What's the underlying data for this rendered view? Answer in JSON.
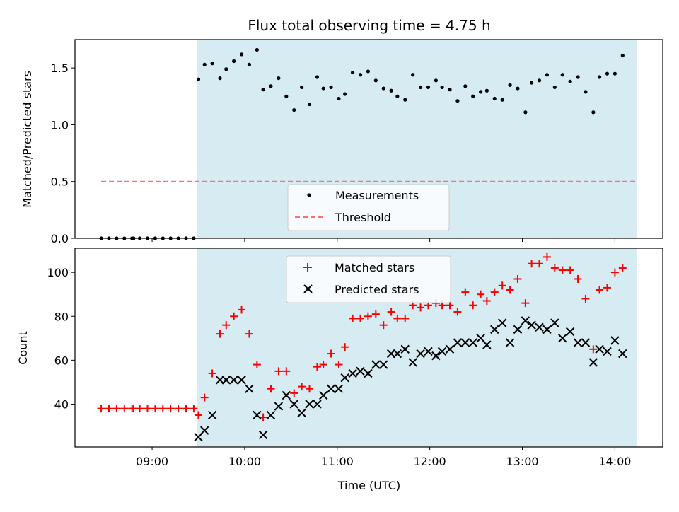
{
  "title": "Flux total observing time = 4.75 h",
  "colors": {
    "shade": "#add8e6",
    "measurement": "#000000",
    "threshold": "#ff6f6f",
    "matched": "#ff0000",
    "predicted": "#000000"
  },
  "chart_data": [
    {
      "type": "scatter",
      "title": "Flux total observing time = 4.75 h",
      "xlabel": "",
      "ylabel": "Matched/Predicted stars",
      "ylim": [
        0,
        1.75
      ],
      "xlim": [
        "08:10",
        "14:31"
      ],
      "y_ticks": [
        "0.0",
        "0.5",
        "1.0",
        "1.5"
      ],
      "shaded_span": [
        "09:29",
        "14:14"
      ],
      "legend_position": "lower center",
      "threshold": {
        "name": "Threshold",
        "value": 0.5,
        "x_range": [
          "08:27",
          "14:14"
        ],
        "style": "dashed"
      },
      "series": [
        {
          "name": "Measurements",
          "marker": "dot",
          "points": [
            [
              "08:27",
              0.0
            ],
            [
              "08:32",
              0.0
            ],
            [
              "08:37",
              0.0
            ],
            [
              "08:42",
              0.0
            ],
            [
              "08:47",
              0.0
            ],
            [
              "08:48",
              0.0
            ],
            [
              "08:52",
              0.0
            ],
            [
              "08:57",
              0.0
            ],
            [
              "09:02",
              0.0
            ],
            [
              "09:07",
              0.0
            ],
            [
              "09:12",
              0.0
            ],
            [
              "09:17",
              0.0
            ],
            [
              "09:22",
              0.0
            ],
            [
              "09:27",
              0.0
            ],
            [
              "09:30",
              1.4
            ],
            [
              "09:34",
              1.53
            ],
            [
              "09:39",
              1.54
            ],
            [
              "09:44",
              1.41
            ],
            [
              "09:48",
              1.49
            ],
            [
              "09:53",
              1.56
            ],
            [
              "09:58",
              1.62
            ],
            [
              "10:03",
              1.53
            ],
            [
              "10:08",
              1.66
            ],
            [
              "10:12",
              1.31
            ],
            [
              "10:17",
              1.34
            ],
            [
              "10:22",
              1.41
            ],
            [
              "10:27",
              1.25
            ],
            [
              "10:32",
              1.13
            ],
            [
              "10:37",
              1.33
            ],
            [
              "10:42",
              1.18
            ],
            [
              "10:47",
              1.42
            ],
            [
              "10:51",
              1.32
            ],
            [
              "10:56",
              1.33
            ],
            [
              "11:01",
              1.23
            ],
            [
              "11:05",
              1.27
            ],
            [
              "11:10",
              1.46
            ],
            [
              "11:15",
              1.44
            ],
            [
              "11:20",
              1.47
            ],
            [
              "11:25",
              1.39
            ],
            [
              "11:30",
              1.32
            ],
            [
              "11:35",
              1.3
            ],
            [
              "11:39",
              1.25
            ],
            [
              "11:44",
              1.22
            ],
            [
              "11:49",
              1.44
            ],
            [
              "11:54",
              1.33
            ],
            [
              "11:59",
              1.33
            ],
            [
              "12:04",
              1.39
            ],
            [
              "12:08",
              1.33
            ],
            [
              "12:13",
              1.31
            ],
            [
              "12:18",
              1.21
            ],
            [
              "12:23",
              1.34
            ],
            [
              "12:28",
              1.25
            ],
            [
              "12:33",
              1.29
            ],
            [
              "12:37",
              1.3
            ],
            [
              "12:42",
              1.23
            ],
            [
              "12:47",
              1.22
            ],
            [
              "12:52",
              1.35
            ],
            [
              "12:57",
              1.32
            ],
            [
              "13:02",
              1.11
            ],
            [
              "13:06",
              1.37
            ],
            [
              "13:11",
              1.39
            ],
            [
              "13:16",
              1.44
            ],
            [
              "13:21",
              1.33
            ],
            [
              "13:26",
              1.44
            ],
            [
              "13:31",
              1.38
            ],
            [
              "13:36",
              1.42
            ],
            [
              "13:41",
              1.29
            ],
            [
              "13:46",
              1.11
            ],
            [
              "13:50",
              1.42
            ],
            [
              "13:55",
              1.45
            ],
            [
              "14:00",
              1.45
            ],
            [
              "14:05",
              1.61
            ]
          ]
        }
      ]
    },
    {
      "type": "scatter",
      "xlabel": "Time (UTC)",
      "ylabel": "Count",
      "ylim": [
        20.5,
        111
      ],
      "xlim": [
        "08:10",
        "14:31"
      ],
      "x_ticks": [
        "09:00",
        "10:00",
        "11:00",
        "12:00",
        "13:00",
        "14:00"
      ],
      "y_ticks": [
        "40",
        "60",
        "80",
        "100"
      ],
      "shaded_span": [
        "09:29",
        "14:14"
      ],
      "legend_position": "upper center",
      "series": [
        {
          "name": "Matched stars",
          "marker": "plus",
          "points": [
            [
              "08:27",
              38
            ],
            [
              "08:32",
              38
            ],
            [
              "08:37",
              38
            ],
            [
              "08:42",
              38
            ],
            [
              "08:47",
              38
            ],
            [
              "08:48",
              38
            ],
            [
              "08:52",
              38
            ],
            [
              "08:57",
              38
            ],
            [
              "09:02",
              38
            ],
            [
              "09:07",
              38
            ],
            [
              "09:12",
              38
            ],
            [
              "09:17",
              38
            ],
            [
              "09:22",
              38
            ],
            [
              "09:27",
              38
            ],
            [
              "09:30",
              35
            ],
            [
              "09:34",
              43
            ],
            [
              "09:39",
              54
            ],
            [
              "09:44",
              72
            ],
            [
              "09:48",
              76
            ],
            [
              "09:53",
              80
            ],
            [
              "09:58",
              83
            ],
            [
              "10:03",
              72
            ],
            [
              "10:08",
              58
            ],
            [
              "10:12",
              34
            ],
            [
              "10:17",
              47
            ],
            [
              "10:22",
              55
            ],
            [
              "10:27",
              55
            ],
            [
              "10:32",
              45
            ],
            [
              "10:37",
              48
            ],
            [
              "10:42",
              47
            ],
            [
              "10:47",
              57
            ],
            [
              "10:51",
              58
            ],
            [
              "10:56",
              63
            ],
            [
              "11:01",
              58
            ],
            [
              "11:05",
              66
            ],
            [
              "11:10",
              79
            ],
            [
              "11:15",
              79
            ],
            [
              "11:20",
              80
            ],
            [
              "11:25",
              81
            ],
            [
              "11:30",
              76
            ],
            [
              "11:35",
              82
            ],
            [
              "11:39",
              79
            ],
            [
              "11:44",
              79
            ],
            [
              "11:49",
              85
            ],
            [
              "11:54",
              84
            ],
            [
              "11:59",
              85
            ],
            [
              "12:04",
              86
            ],
            [
              "12:08",
              85
            ],
            [
              "12:13",
              85
            ],
            [
              "12:18",
              82
            ],
            [
              "12:23",
              91
            ],
            [
              "12:28",
              85
            ],
            [
              "12:33",
              90
            ],
            [
              "12:37",
              87
            ],
            [
              "12:42",
              91
            ],
            [
              "12:47",
              94
            ],
            [
              "12:52",
              92
            ],
            [
              "12:57",
              97
            ],
            [
              "13:02",
              86
            ],
            [
              "13:06",
              104
            ],
            [
              "13:11",
              104
            ],
            [
              "13:16",
              107
            ],
            [
              "13:21",
              102
            ],
            [
              "13:26",
              101
            ],
            [
              "13:31",
              101
            ],
            [
              "13:36",
              97
            ],
            [
              "13:41",
              88
            ],
            [
              "13:46",
              65
            ],
            [
              "13:50",
              92
            ],
            [
              "13:55",
              93
            ],
            [
              "14:00",
              100
            ],
            [
              "14:05",
              102
            ]
          ]
        },
        {
          "name": "Predicted stars",
          "marker": "x",
          "points": [
            [
              "09:30",
              25
            ],
            [
              "09:34",
              28
            ],
            [
              "09:39",
              35
            ],
            [
              "09:44",
              51
            ],
            [
              "09:48",
              51
            ],
            [
              "09:53",
              51
            ],
            [
              "09:58",
              51
            ],
            [
              "10:03",
              47
            ],
            [
              "10:08",
              35
            ],
            [
              "10:12",
              26
            ],
            [
              "10:17",
              35
            ],
            [
              "10:22",
              39
            ],
            [
              "10:27",
              44
            ],
            [
              "10:32",
              40
            ],
            [
              "10:37",
              36
            ],
            [
              "10:42",
              40
            ],
            [
              "10:47",
              40
            ],
            [
              "10:51",
              44
            ],
            [
              "10:56",
              47
            ],
            [
              "11:01",
              47
            ],
            [
              "11:05",
              52
            ],
            [
              "11:10",
              54
            ],
            [
              "11:15",
              55
            ],
            [
              "11:20",
              54
            ],
            [
              "11:25",
              58
            ],
            [
              "11:30",
              58
            ],
            [
              "11:35",
              63
            ],
            [
              "11:39",
              63
            ],
            [
              "11:44",
              65
            ],
            [
              "11:49",
              59
            ],
            [
              "11:54",
              63
            ],
            [
              "11:59",
              64
            ],
            [
              "12:04",
              62
            ],
            [
              "12:08",
              64
            ],
            [
              "12:13",
              65
            ],
            [
              "12:18",
              68
            ],
            [
              "12:23",
              68
            ],
            [
              "12:28",
              68
            ],
            [
              "12:33",
              70
            ],
            [
              "12:37",
              67
            ],
            [
              "12:42",
              74
            ],
            [
              "12:47",
              77
            ],
            [
              "12:52",
              68
            ],
            [
              "12:57",
              74
            ],
            [
              "13:02",
              78
            ],
            [
              "13:06",
              76
            ],
            [
              "13:11",
              75
            ],
            [
              "13:16",
              74
            ],
            [
              "13:21",
              77
            ],
            [
              "13:26",
              70
            ],
            [
              "13:31",
              73
            ],
            [
              "13:36",
              68
            ],
            [
              "13:41",
              68
            ],
            [
              "13:46",
              59
            ],
            [
              "13:50",
              65
            ],
            [
              "13:55",
              64
            ],
            [
              "14:00",
              69
            ],
            [
              "14:05",
              63
            ]
          ]
        }
      ]
    }
  ]
}
